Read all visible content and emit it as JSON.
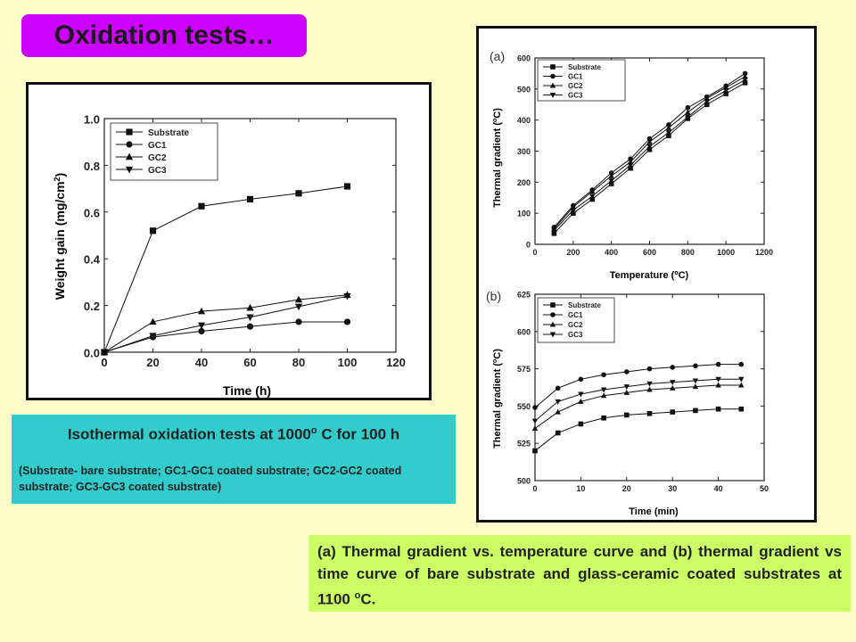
{
  "slide_title": "Oxidation tests…",
  "caption_left": {
    "main": "Isothermal oxidation tests at 1000",
    "sup": "o",
    "main_end": " C for 100 h",
    "sub": "(Substrate- bare substrate; GC1-GC1 coated substrate; GC2-GC2 coated substrate; GC3-GC3 coated substrate)"
  },
  "caption_right": {
    "text": "(a) Thermal gradient vs. temperature curve and (b) thermal gradient vs time curve of bare substrate and glass-ceramic coated substrates at 1100 ",
    "sup": "o",
    "text_end": "C."
  },
  "colors": {
    "title_bg": "#cc00ff",
    "caption_left_bg": "#33cccc",
    "caption_right_bg": "#ccff66",
    "page_bg": "#ffffcc"
  },
  "chart_data": [
    {
      "id": "weight",
      "type": "line",
      "xlabel": "Time (h)",
      "ylabel": "Weight gain (mg/cm",
      "ylabel_sup": "2",
      "ylabel_end": ")",
      "xlim": [
        0,
        120
      ],
      "ylim": [
        0,
        1.0
      ],
      "xticks": [
        0,
        20,
        40,
        60,
        80,
        100,
        120
      ],
      "yticks": [
        0.0,
        0.2,
        0.4,
        0.6,
        0.8,
        1.0
      ],
      "xtick_labels": [
        "0",
        "20",
        "40",
        "60",
        "80",
        "100",
        "120"
      ],
      "ytick_labels": [
        "0.0",
        "0.2",
        "0.4",
        "0.6",
        "0.8",
        "1.0"
      ],
      "legend_position": "top-left",
      "x": [
        0,
        20,
        40,
        60,
        80,
        100
      ],
      "series": [
        {
          "name": "Substrate",
          "marker": "square",
          "values": [
            0,
            0.52,
            0.625,
            0.655,
            0.68,
            0.71
          ]
        },
        {
          "name": "GC1",
          "marker": "circle",
          "values": [
            0,
            0.065,
            0.09,
            0.11,
            0.13,
            0.13
          ]
        },
        {
          "name": "GC2",
          "marker": "triangle-up",
          "values": [
            0,
            0.13,
            0.175,
            0.19,
            0.225,
            0.245
          ]
        },
        {
          "name": "GC3",
          "marker": "triangle-down",
          "values": [
            0,
            0.07,
            0.115,
            0.15,
            0.195,
            0.24
          ]
        }
      ]
    },
    {
      "id": "temp",
      "panel_label": "(a)",
      "type": "line",
      "xlabel": "Temperature (",
      "xlabel_sup": "o",
      "xlabel_end": "C)",
      "ylabel": "Thermal gradient (",
      "ylabel_sup": "o",
      "ylabel_end": "C)",
      "xlim": [
        0,
        1200
      ],
      "ylim": [
        0,
        600
      ],
      "xticks": [
        0,
        200,
        400,
        600,
        800,
        1000,
        1200
      ],
      "yticks": [
        0,
        100,
        200,
        300,
        400,
        500,
        600
      ],
      "xtick_labels": [
        "0",
        "200",
        "400",
        "600",
        "800",
        "1000",
        "1200"
      ],
      "ytick_labels": [
        "0",
        "100",
        "200",
        "300",
        "400",
        "500",
        "600"
      ],
      "legend_position": "top-left",
      "x": [
        100,
        200,
        300,
        400,
        500,
        600,
        700,
        800,
        900,
        1000,
        1100
      ],
      "series": [
        {
          "name": "Substrate",
          "marker": "square",
          "values": [
            35,
            100,
            145,
            195,
            245,
            305,
            350,
            405,
            450,
            485,
            520
          ]
        },
        {
          "name": "GC1",
          "marker": "circle",
          "values": [
            55,
            125,
            175,
            230,
            275,
            340,
            385,
            440,
            475,
            510,
            550
          ]
        },
        {
          "name": "GC2",
          "marker": "triangle-up",
          "values": [
            50,
            120,
            170,
            220,
            265,
            330,
            375,
            425,
            470,
            505,
            540
          ]
        },
        {
          "name": "GC3",
          "marker": "triangle-down",
          "values": [
            45,
            110,
            155,
            205,
            255,
            315,
            360,
            410,
            460,
            495,
            530
          ]
        }
      ]
    },
    {
      "id": "time",
      "panel_label": "(b)",
      "type": "line",
      "xlabel": "Time (min)",
      "ylabel": "Thermal gradient (",
      "ylabel_sup": "o",
      "ylabel_end": "C)",
      "xlim": [
        0,
        50
      ],
      "ylim": [
        500,
        625
      ],
      "xticks": [
        0,
        10,
        20,
        30,
        40,
        50
      ],
      "yticks": [
        500,
        525,
        550,
        575,
        600,
        625
      ],
      "xtick_labels": [
        "0",
        "10",
        "20",
        "30",
        "40",
        "50"
      ],
      "ytick_labels": [
        "500",
        "525",
        "550",
        "575",
        "600",
        "625"
      ],
      "legend_position": "top-left",
      "x": [
        0,
        5,
        10,
        15,
        20,
        25,
        30,
        35,
        40,
        45
      ],
      "series": [
        {
          "name": "Substrate",
          "marker": "square",
          "values": [
            520,
            532,
            538,
            542,
            544,
            545,
            546,
            547,
            548,
            548
          ]
        },
        {
          "name": "GC1",
          "marker": "circle",
          "values": [
            549,
            562,
            568,
            571,
            573,
            575,
            576,
            577,
            578,
            578
          ]
        },
        {
          "name": "GC2",
          "marker": "triangle-up",
          "values": [
            535,
            546,
            553,
            557,
            559,
            561,
            562,
            563,
            564,
            564
          ]
        },
        {
          "name": "GC3",
          "marker": "triangle-down",
          "values": [
            540,
            553,
            558,
            561,
            563,
            565,
            566,
            567,
            568,
            568
          ]
        }
      ]
    }
  ]
}
